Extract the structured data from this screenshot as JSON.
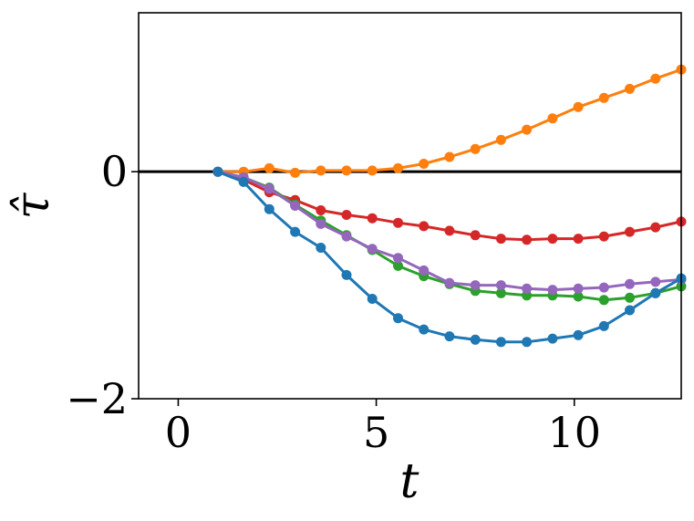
{
  "chart_data": {
    "type": "line",
    "title": "",
    "xlabel": "t",
    "ylabel": "τ̂",
    "xlim": [
      -1,
      12.7
    ],
    "ylim": [
      -2,
      1.4
    ],
    "xticks": [
      0,
      5,
      10
    ],
    "xtick_labels": [
      "0",
      "5",
      "10"
    ],
    "yticks": [
      -2,
      0
    ],
    "ytick_labels": [
      "−2",
      "0"
    ],
    "grid": false,
    "legend": "none",
    "reference_line": {
      "y": 0,
      "color": "#000000"
    },
    "x": [
      1.0,
      1.65,
      2.3,
      2.95,
      3.6,
      4.25,
      4.9,
      5.55,
      6.2,
      6.85,
      7.5,
      8.15,
      8.8,
      9.45,
      10.1,
      10.75,
      11.4,
      12.05,
      12.7
    ],
    "series": [
      {
        "color": "#ff7f0e",
        "values": [
          0.0,
          0.0,
          0.03,
          -0.01,
          0.01,
          0.01,
          0.01,
          0.03,
          0.07,
          0.13,
          0.2,
          0.28,
          0.37,
          0.47,
          0.57,
          0.65,
          0.73,
          0.82,
          0.9
        ]
      },
      {
        "color": "#d62728",
        "values": [
          0.0,
          -0.07,
          -0.18,
          -0.25,
          -0.34,
          -0.38,
          -0.41,
          -0.45,
          -0.48,
          -0.52,
          -0.56,
          -0.59,
          -0.6,
          -0.59,
          -0.59,
          -0.57,
          -0.53,
          -0.49,
          -0.44
        ]
      },
      {
        "color": "#2ca02c",
        "values": [
          0.0,
          -0.05,
          -0.14,
          -0.29,
          -0.43,
          -0.56,
          -0.69,
          -0.83,
          -0.92,
          -0.99,
          -1.05,
          -1.07,
          -1.09,
          -1.09,
          -1.1,
          -1.13,
          -1.11,
          -1.07,
          -1.01
        ]
      },
      {
        "color": "#9467bd",
        "values": [
          0.0,
          -0.05,
          -0.15,
          -0.3,
          -0.46,
          -0.57,
          -0.68,
          -0.76,
          -0.87,
          -0.98,
          -1.0,
          -1.0,
          -1.03,
          -1.04,
          -1.03,
          -1.02,
          -0.99,
          -0.97,
          -0.95
        ]
      },
      {
        "color": "#1f77b4",
        "values": [
          0.0,
          -0.09,
          -0.33,
          -0.53,
          -0.67,
          -0.91,
          -1.12,
          -1.29,
          -1.39,
          -1.45,
          -1.48,
          -1.5,
          -1.5,
          -1.47,
          -1.44,
          -1.36,
          -1.22,
          -1.07,
          -0.94
        ]
      }
    ]
  }
}
